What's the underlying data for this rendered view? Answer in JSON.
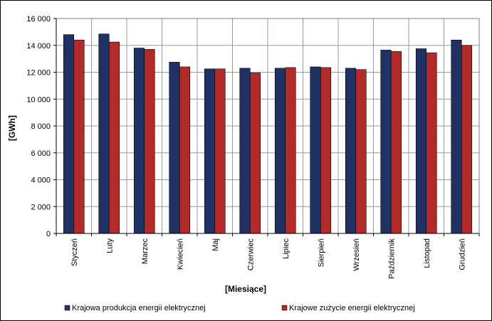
{
  "chart_data": {
    "type": "bar",
    "title": "",
    "xlabel": "[Miesiące]",
    "ylabel": "[GWh]",
    "ylim": [
      0,
      16000
    ],
    "ytick_step": 2000,
    "ytick_labels": [
      "0",
      "2 000",
      "4 000",
      "6 000",
      "8 000",
      "10 000",
      "12 000",
      "14 000",
      "16 000"
    ],
    "grid": true,
    "legend_position": "bottom",
    "categories": [
      "Styczeń",
      "Luty",
      "Marzec",
      "Kwiecień",
      "Maj",
      "Czerwiec",
      "Lipiec",
      "Sierpień",
      "Wrzesień",
      "Październik",
      "Listopad",
      "Grudzień"
    ],
    "series": [
      {
        "name": "Krajowa produkcja energii elektrycznej",
        "color": "#1f3263",
        "values": [
          14800,
          14850,
          13800,
          12750,
          12250,
          12300,
          12300,
          12400,
          12300,
          13650,
          13750,
          14400
        ]
      },
      {
        "name": "Krajowe zużycie energii elektrycznej",
        "color": "#b22a2a",
        "values": [
          14400,
          14250,
          13700,
          12400,
          12250,
          11950,
          12350,
          12350,
          12200,
          13550,
          13450,
          14000
        ]
      }
    ],
    "plot_background": "#ffffff",
    "grid_color": "#999999"
  }
}
